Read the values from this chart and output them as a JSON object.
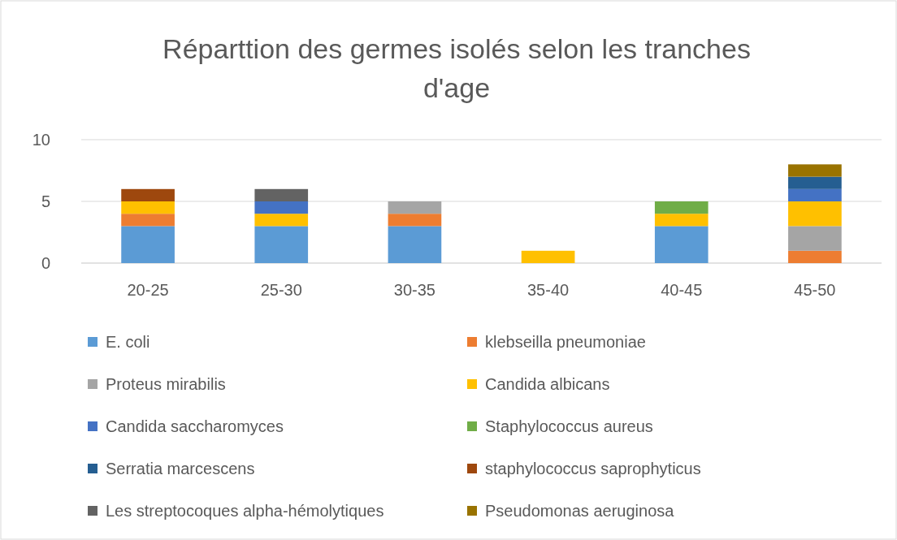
{
  "chart_data": {
    "type": "bar",
    "stacked": true,
    "title": "Réparttion des germes isolés selon les tranches d'age",
    "categories": [
      "20-25",
      "25-30",
      "30-35",
      "35-40",
      "40-45",
      "45-50"
    ],
    "ylim": [
      0,
      10
    ],
    "yticks": [
      0,
      5,
      10
    ],
    "grid": "y",
    "legend": "bottom",
    "series": [
      {
        "name": "E. coli",
        "color": "#5b9bd5",
        "values": [
          3,
          3,
          3,
          null,
          3,
          null
        ]
      },
      {
        "name": "klebseilla pneumoniae",
        "color": "#ed7d31",
        "values": [
          1,
          null,
          1,
          null,
          null,
          1
        ]
      },
      {
        "name": "Proteus mirabilis",
        "color": "#a5a5a5",
        "values": [
          null,
          null,
          1,
          null,
          null,
          2
        ]
      },
      {
        "name": "Candida albicans",
        "color": "#ffc000",
        "values": [
          1,
          1,
          null,
          1,
          1,
          2
        ]
      },
      {
        "name": "Candida saccharomyces",
        "color": "#4472c4",
        "values": [
          null,
          1,
          null,
          null,
          null,
          1
        ]
      },
      {
        "name": "Staphylococcus aureus",
        "color": "#70ad47",
        "values": [
          null,
          null,
          null,
          null,
          1,
          null
        ]
      },
      {
        "name": "Serratia marcescens",
        "color": "#255e91",
        "values": [
          null,
          null,
          null,
          null,
          null,
          1
        ]
      },
      {
        "name": "staphylococcus saprophyticus",
        "color": "#9e480e",
        "values": [
          1,
          null,
          null,
          null,
          null,
          null
        ]
      },
      {
        "name": "Les streptocoques alpha-hémolytiques",
        "color": "#636363",
        "values": [
          null,
          1,
          null,
          null,
          null,
          null
        ]
      },
      {
        "name": "Pseudomonas aeruginosa",
        "color": "#997300",
        "values": [
          null,
          null,
          null,
          null,
          null,
          1
        ]
      }
    ]
  }
}
